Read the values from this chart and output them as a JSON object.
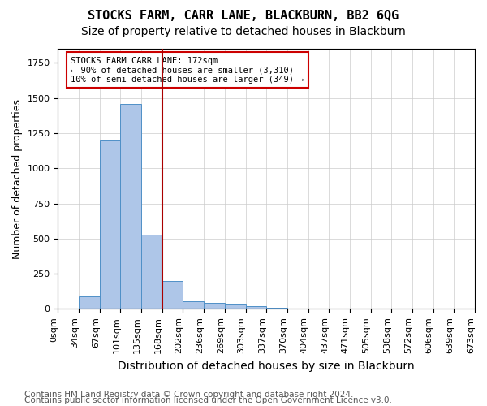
{
  "title": "STOCKS FARM, CARR LANE, BLACKBURN, BB2 6QG",
  "subtitle": "Size of property relative to detached houses in Blackburn",
  "xlabel": "Distribution of detached houses by size in Blackburn",
  "ylabel": "Number of detached properties",
  "footnote1": "Contains HM Land Registry data © Crown copyright and database right 2024.",
  "footnote2": "Contains public sector information licensed under the Open Government Licence v3.0.",
  "bins": [
    "0sqm",
    "34sqm",
    "67sqm",
    "101sqm",
    "135sqm",
    "168sqm",
    "202sqm",
    "236sqm",
    "269sqm",
    "303sqm",
    "337sqm",
    "370sqm",
    "404sqm",
    "437sqm",
    "471sqm",
    "505sqm",
    "538sqm",
    "572sqm",
    "606sqm",
    "639sqm",
    "673sqm"
  ],
  "values": [
    0,
    90,
    1200,
    1460,
    530,
    200,
    55,
    45,
    30,
    20,
    10,
    5,
    3,
    1,
    0,
    0,
    0,
    0,
    0,
    0
  ],
  "bar_color": "#aec6e8",
  "bar_edge_color": "#4f90c7",
  "marker_bin_index": 5,
  "marker_color": "#aa0000",
  "annotation_text": "STOCKS FARM CARR LANE: 172sqm\n← 90% of detached houses are smaller (3,310)\n10% of semi-detached houses are larger (349) →",
  "annotation_box_color": "#ffffff",
  "annotation_box_edge": "#cc0000",
  "ylim": [
    0,
    1850
  ],
  "title_fontsize": 11,
  "subtitle_fontsize": 10,
  "xlabel_fontsize": 10,
  "ylabel_fontsize": 9,
  "tick_fontsize": 8,
  "footnote_fontsize": 7.5
}
